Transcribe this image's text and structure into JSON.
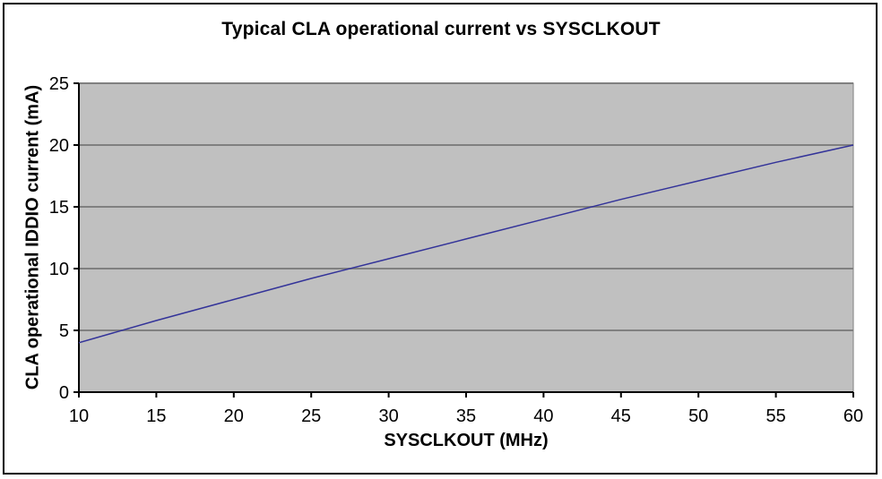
{
  "chart_data": {
    "type": "line",
    "title": "Typical CLA operational current vs SYSCLKOUT",
    "xlabel": "SYSCLKOUT (MHz)",
    "ylabel": "CLA operational IDDIO current (mA)",
    "x": [
      10,
      15,
      20,
      25,
      30,
      35,
      40,
      45,
      50,
      55,
      60
    ],
    "values": [
      4.0,
      5.8,
      7.5,
      9.2,
      10.8,
      12.4,
      14.0,
      15.6,
      17.1,
      18.6,
      20.0
    ],
    "xlim": [
      10,
      60
    ],
    "ylim": [
      0,
      25
    ],
    "xticks": [
      10,
      15,
      20,
      25,
      30,
      35,
      40,
      45,
      50,
      55,
      60
    ],
    "yticks": [
      0,
      5,
      10,
      15,
      20,
      25
    ],
    "grid": "horizontal",
    "legend": "none",
    "colors": {
      "line": "#333399",
      "plot_bg": "#c0c0c0",
      "gridline": "#808080",
      "axis": "#000000",
      "text": "#000000",
      "outer_border": "#000000",
      "background": "#ffffff"
    }
  }
}
